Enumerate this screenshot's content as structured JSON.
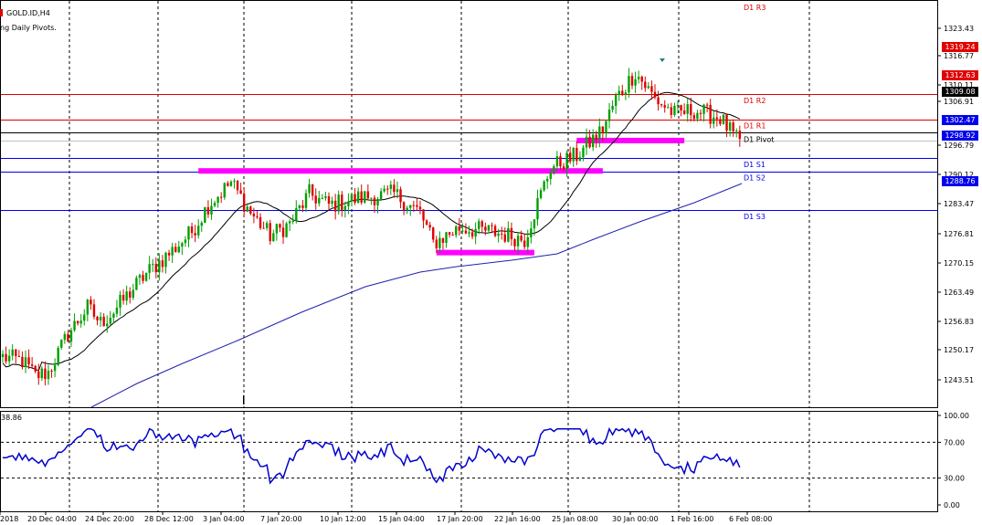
{
  "chart": {
    "symbol_label": "GOLD.ID,H4",
    "indicator_label": "ng Daily Pivots.",
    "oscillator_value": "38.86",
    "colors": {
      "bull": "#00a000",
      "bear": "#e00000",
      "resistance": "#e00000",
      "support": "#0000ee",
      "pivot": "#000000",
      "zone": "#ff00ff",
      "ma_fast": "#000000",
      "ma_slow": "#2020b0",
      "oscillator": "#0000cc",
      "grid": "#000000"
    },
    "pivot_labels": [
      "D1 R3",
      "D1 R2",
      "D1 R1",
      "D1 Pivot",
      "D1 S1",
      "D1 S2",
      "D1 S3"
    ],
    "price_axis_labels": [
      "1323.43",
      "1316.77",
      "1310.11",
      "1306.91",
      "1296.79",
      "1290.12",
      "1283.47",
      "1276.81",
      "1270.15",
      "1263.49",
      "1256.83",
      "1250.17",
      "1243.51"
    ],
    "price_tags": [
      {
        "text": "1319.24",
        "color": "#e00000"
      },
      {
        "text": "1312.63",
        "color": "#e00000"
      },
      {
        "text": "1309.08",
        "color": "#000000"
      },
      {
        "text": "1302.47",
        "color": "#0000ee"
      },
      {
        "text": "1298.92",
        "color": "#0000ee"
      },
      {
        "text": "1288.76",
        "color": "#0000ee"
      }
    ],
    "oscillator_axis_labels": [
      "100.00",
      "70.00",
      "30.00",
      "0.00"
    ],
    "time_axis_labels": [
      "2018",
      "20 Dec 04:00",
      "24 Dec 20:00",
      "28 Dec 12:00",
      "3 Jan 04:00",
      "7 Jan 20:00",
      "10 Jan 12:00",
      "15 Jan 04:00",
      "17 Jan 20:00",
      "22 Jan 16:00",
      "25 Jan 08:00",
      "30 Jan 00:00",
      "1 Feb 16:00",
      "6 Feb 08:00"
    ]
  },
  "chart_data": {
    "type": "candlestick",
    "price_range": [
      1238.0,
      1330.0
    ],
    "pivots": {
      "R3": 1326.0,
      "R2": 1319.24,
      "R1": 1312.63,
      "Pivot": 1309.08,
      "S1": 1302.47,
      "S2": 1298.92,
      "S3": 1288.76
    },
    "current_price": 1306.91,
    "oscillator_range": [
      0,
      100
    ],
    "oscillator_levels": [
      70,
      30
    ],
    "zones": [
      {
        "price": 1299.0,
        "start_bar": 60,
        "end_bar": 184
      },
      {
        "price": 1277.5,
        "start_bar": 133,
        "end_bar": 163
      },
      {
        "price": 1307.0,
        "start_bar": 176,
        "end_bar": 209
      }
    ]
  }
}
